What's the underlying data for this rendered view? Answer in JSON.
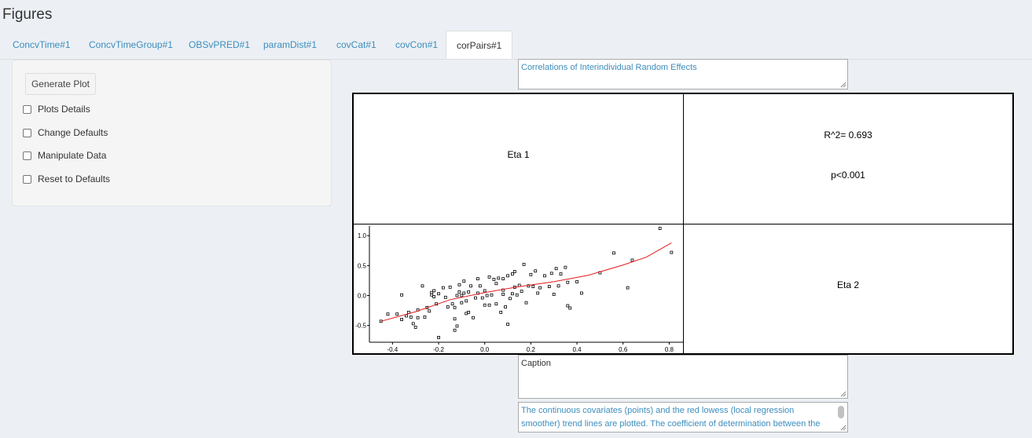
{
  "page": {
    "title": "Figures"
  },
  "tabs": [
    "ConcvTime#1",
    "ConcvTimeGroup#1",
    "OBSvPRED#1",
    "paramDist#1",
    "covCat#1",
    "covCon#1",
    "corPairs#1"
  ],
  "active_tab": "corPairs#1",
  "sidebar": {
    "generate_label": "Generate Plot",
    "checkboxes": [
      "Plots Details",
      "Change Defaults",
      "Manipulate Data",
      "Reset to Defaults"
    ]
  },
  "title_field": {
    "value": "Correlations of Interindividual Random Effects"
  },
  "caption_field": {
    "value": "Caption"
  },
  "footnote_field": {
    "value": "The continuous covariates (points) and the red lowess (local regression smoother) trend lines are plotted.  The coefficient of determination between the"
  },
  "plot": {
    "diag1": "Eta 1",
    "diag2": "Eta 2",
    "r2": "R^2= 0.693",
    "p": "p<0.001"
  },
  "colors": {
    "accent": "#3c8dbc",
    "trend": "#e41a1c"
  },
  "chart_data": {
    "type": "scatter",
    "xlim": [
      -0.5,
      0.86
    ],
    "ylim": [
      -0.78,
      1.16
    ],
    "xticks": [
      -0.4,
      -0.2,
      0.0,
      0.2,
      0.4,
      0.6,
      0.8
    ],
    "xtick_labels": [
      "-0.4",
      "-0.2",
      "0.0",
      "0.2",
      "0.4",
      "0.6",
      "0.8"
    ],
    "yticks": [
      -0.5,
      0.0,
      0.5,
      1.0
    ],
    "ytick_labels": [
      "-0.5",
      "0.0",
      "0.5",
      "1.0"
    ],
    "points": [
      [
        -0.45,
        -0.43
      ],
      [
        -0.42,
        -0.31
      ],
      [
        -0.38,
        -0.31
      ],
      [
        -0.36,
        -0.4
      ],
      [
        -0.36,
        0.01
      ],
      [
        -0.34,
        -0.34
      ],
      [
        -0.33,
        -0.28
      ],
      [
        -0.32,
        -0.36
      ],
      [
        -0.31,
        -0.47
      ],
      [
        -0.3,
        -0.53
      ],
      [
        -0.29,
        -0.37
      ],
      [
        -0.29,
        -0.24
      ],
      [
        -0.27,
        0.16
      ],
      [
        -0.26,
        -0.36
      ],
      [
        -0.25,
        -0.2
      ],
      [
        -0.24,
        -0.26
      ],
      [
        -0.23,
        0.05
      ],
      [
        -0.23,
        0.01
      ],
      [
        -0.22,
        0.08
      ],
      [
        -0.22,
        -0.02
      ],
      [
        -0.21,
        -0.14
      ],
      [
        -0.2,
        -0.7
      ],
      [
        -0.2,
        0.03
      ],
      [
        -0.18,
        0.13
      ],
      [
        -0.17,
        -0.03
      ],
      [
        -0.16,
        -0.19
      ],
      [
        -0.15,
        0.14
      ],
      [
        -0.14,
        -0.14
      ],
      [
        -0.13,
        -0.2
      ],
      [
        -0.13,
        -0.39
      ],
      [
        -0.13,
        -0.58
      ],
      [
        -0.12,
        -0.51
      ],
      [
        -0.12,
        0.0
      ],
      [
        -0.11,
        0.18
      ],
      [
        -0.11,
        0.06
      ],
      [
        -0.1,
        0.0
      ],
      [
        -0.1,
        -0.12
      ],
      [
        -0.09,
        0.24
      ],
      [
        -0.09,
        0.04
      ],
      [
        -0.08,
        -0.09
      ],
      [
        -0.08,
        -0.3
      ],
      [
        -0.07,
        0.06
      ],
      [
        -0.07,
        -0.28
      ],
      [
        -0.06,
        0.16
      ],
      [
        -0.05,
        -0.37
      ],
      [
        -0.04,
        -0.04
      ],
      [
        -0.03,
        0.28
      ],
      [
        -0.03,
        0.04
      ],
      [
        -0.02,
        0.16
      ],
      [
        -0.01,
        -0.04
      ],
      [
        0.0,
        0.08
      ],
      [
        0.0,
        -0.16
      ],
      [
        0.01,
        0.0
      ],
      [
        0.02,
        0.31
      ],
      [
        0.02,
        -0.16
      ],
      [
        0.03,
        0.01
      ],
      [
        0.04,
        0.27
      ],
      [
        0.05,
        -0.14
      ],
      [
        0.05,
        0.2
      ],
      [
        0.06,
        0.29
      ],
      [
        0.07,
        -0.28
      ],
      [
        0.08,
        0.09
      ],
      [
        0.08,
        0.28
      ],
      [
        0.08,
        0.02
      ],
      [
        0.09,
        -0.19
      ],
      [
        0.1,
        0.33
      ],
      [
        0.1,
        -0.48
      ],
      [
        0.11,
        -0.05
      ],
      [
        0.12,
        0.36
      ],
      [
        0.12,
        0.03
      ],
      [
        0.13,
        0.4
      ],
      [
        0.13,
        0.14
      ],
      [
        0.14,
        0.01
      ],
      [
        0.15,
        0.17
      ],
      [
        0.16,
        0.07
      ],
      [
        0.17,
        0.52
      ],
      [
        0.18,
        -0.12
      ],
      [
        0.19,
        0.16
      ],
      [
        0.2,
        0.35
      ],
      [
        0.21,
        0.15
      ],
      [
        0.22,
        0.41
      ],
      [
        0.23,
        0.04
      ],
      [
        0.24,
        0.13
      ],
      [
        0.26,
        0.33
      ],
      [
        0.28,
        0.15
      ],
      [
        0.29,
        0.37
      ],
      [
        0.3,
        0.02
      ],
      [
        0.31,
        0.45
      ],
      [
        0.32,
        0.16
      ],
      [
        0.33,
        0.36
      ],
      [
        0.35,
        0.47
      ],
      [
        0.36,
        -0.17
      ],
      [
        0.36,
        0.22
      ],
      [
        0.37,
        -0.21
      ],
      [
        0.4,
        0.23
      ],
      [
        0.42,
        0.04
      ],
      [
        0.5,
        0.38
      ],
      [
        0.56,
        0.71
      ],
      [
        0.62,
        0.13
      ],
      [
        0.64,
        0.59
      ],
      [
        0.76,
        1.12
      ],
      [
        0.81,
        0.72
      ]
    ],
    "trend": [
      [
        -0.45,
        -0.43
      ],
      [
        -0.3,
        -0.27
      ],
      [
        -0.15,
        -0.07
      ],
      [
        0.0,
        0.05
      ],
      [
        0.15,
        0.15
      ],
      [
        0.3,
        0.23
      ],
      [
        0.45,
        0.34
      ],
      [
        0.6,
        0.51
      ],
      [
        0.7,
        0.64
      ],
      [
        0.81,
        0.88
      ]
    ]
  }
}
